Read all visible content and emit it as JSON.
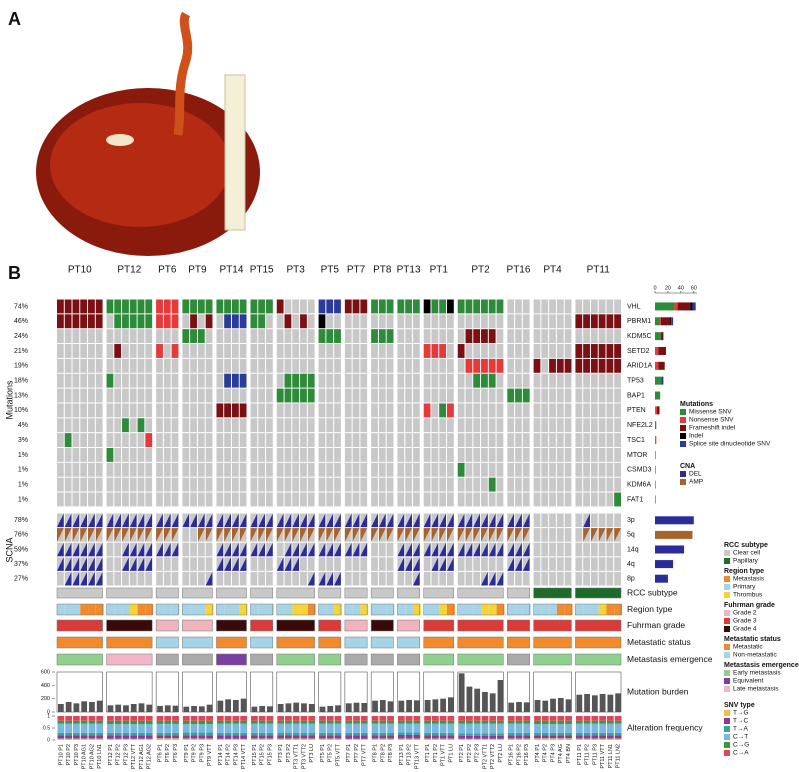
{
  "panel_a_label": "A",
  "panel_b_label": "B",
  "mutations_label": "Mutations",
  "scna_label": "SCNA",
  "patients": [
    {
      "name": "PT10",
      "samples": [
        "PT10 P1",
        "PT10 P2",
        "PT10 P3",
        "PT10 AG1",
        "PT10 AG2",
        "PT10 LN1"
      ],
      "region": [
        1,
        1,
        1,
        0,
        0,
        0
      ],
      "rcc": 0,
      "grade": 1,
      "status": 0,
      "emergence": 0,
      "burden": [
        120,
        150,
        130,
        160,
        150,
        170
      ],
      "spectrum": [
        0.06,
        0.14,
        0.1,
        0.38,
        0.12,
        0.2
      ]
    },
    {
      "name": "PT12",
      "samples": [
        "PT12 P1",
        "PT12 P2",
        "PT12 P3",
        "PT12 VTT",
        "PT12 AG1",
        "PT12 AG2"
      ],
      "region": [
        1,
        1,
        1,
        2,
        0,
        0
      ],
      "rcc": 0,
      "grade": 2,
      "status": 0,
      "emergence": 2,
      "burden": [
        100,
        110,
        100,
        120,
        130,
        110
      ],
      "spectrum": [
        0.05,
        0.15,
        0.1,
        0.36,
        0.14,
        0.2
      ]
    },
    {
      "name": "PT6",
      "samples": [
        "PT6 P1",
        "PT6 P2",
        "PT6 P3"
      ],
      "region": [
        1,
        1,
        1
      ],
      "rcc": 0,
      "grade": 0,
      "status": 1,
      "emergence": null,
      "burden": [
        90,
        100,
        95
      ],
      "spectrum": [
        0.07,
        0.13,
        0.1,
        0.37,
        0.13,
        0.2
      ]
    },
    {
      "name": "PT9",
      "samples": [
        "PT9 P1",
        "PT9 P2",
        "PT9 P3",
        "PT9 VTT"
      ],
      "region": [
        1,
        1,
        1,
        2
      ],
      "rcc": 0,
      "grade": 0,
      "status": 1,
      "emergence": null,
      "burden": [
        80,
        90,
        85,
        110
      ],
      "spectrum": [
        0.06,
        0.14,
        0.11,
        0.35,
        0.14,
        0.2
      ]
    },
    {
      "name": "PT14",
      "samples": [
        "PT14 P1",
        "PT14 P2",
        "PT14 P3",
        "PT14 VTT"
      ],
      "region": [
        1,
        1,
        1,
        2
      ],
      "rcc": 0,
      "grade": 2,
      "status": 0,
      "emergence": 1,
      "burden": [
        170,
        190,
        180,
        200
      ],
      "spectrum": [
        0.05,
        0.15,
        0.1,
        0.38,
        0.12,
        0.2
      ]
    },
    {
      "name": "PT15",
      "samples": [
        "PT15 P1",
        "PT15 P2",
        "PT15 P3"
      ],
      "region": [
        1,
        1,
        1
      ],
      "rcc": 0,
      "grade": 1,
      "status": 1,
      "emergence": null,
      "burden": [
        80,
        90,
        85
      ],
      "spectrum": [
        0.06,
        0.14,
        0.1,
        0.38,
        0.12,
        0.2
      ]
    },
    {
      "name": "PT3",
      "samples": [
        "PT3 P1",
        "PT3 P2",
        "PT3 VTT1",
        "PT3 VTT2",
        "PT3 LU"
      ],
      "region": [
        1,
        1,
        2,
        2,
        0
      ],
      "rcc": 0,
      "grade": 2,
      "status": 0,
      "emergence": 0,
      "burden": [
        120,
        130,
        140,
        130,
        120
      ],
      "spectrum": [
        0.06,
        0.13,
        0.1,
        0.39,
        0.12,
        0.2
      ]
    },
    {
      "name": "PT5",
      "samples": [
        "PT5 P1",
        "PT5 P2",
        "PT5 VTT"
      ],
      "region": [
        1,
        1,
        2
      ],
      "rcc": 0,
      "grade": 1,
      "status": 0,
      "emergence": 0,
      "burden": [
        80,
        90,
        100
      ],
      "spectrum": [
        0.06,
        0.14,
        0.1,
        0.38,
        0.12,
        0.2
      ]
    },
    {
      "name": "PT7",
      "samples": [
        "PT7 P1",
        "PT7 P2",
        "PT7 VTT"
      ],
      "region": [
        1,
        1,
        2
      ],
      "rcc": 0,
      "grade": 0,
      "status": 1,
      "emergence": null,
      "burden": [
        130,
        140,
        135
      ],
      "spectrum": [
        0.05,
        0.14,
        0.11,
        0.38,
        0.12,
        0.2
      ]
    },
    {
      "name": "PT8",
      "samples": [
        "PT8 P1",
        "PT8 P2",
        "PT8 P3"
      ],
      "region": [
        1,
        1,
        1
      ],
      "rcc": 0,
      "grade": 2,
      "status": 1,
      "emergence": null,
      "burden": [
        170,
        180,
        160
      ],
      "spectrum": [
        0.06,
        0.14,
        0.1,
        0.38,
        0.12,
        0.2
      ]
    },
    {
      "name": "PT13",
      "samples": [
        "PT13 P1",
        "PT13 P2",
        "PT13 VTT"
      ],
      "region": [
        1,
        1,
        2
      ],
      "rcc": 0,
      "grade": 0,
      "status": 1,
      "emergence": null,
      "burden": [
        170,
        180,
        175
      ],
      "spectrum": [
        0.06,
        0.15,
        0.1,
        0.37,
        0.12,
        0.2
      ]
    },
    {
      "name": "PT1",
      "samples": [
        "PT1 P1",
        "PT1 P2",
        "PT1 VTT",
        "PT1 LU"
      ],
      "region": [
        1,
        1,
        2,
        0
      ],
      "rcc": 0,
      "grade": 1,
      "status": 0,
      "emergence": 0,
      "burden": [
        180,
        190,
        200,
        220
      ],
      "spectrum": [
        0.06,
        0.14,
        0.1,
        0.38,
        0.12,
        0.2
      ]
    },
    {
      "name": "PT2",
      "samples": [
        "PT2 P1",
        "PT2 P2",
        "PT2 P3",
        "PT2 VTT1",
        "PT2 VTT2",
        "PT2 LU"
      ],
      "region": [
        1,
        1,
        1,
        2,
        2,
        0
      ],
      "rcc": 0,
      "grade": 1,
      "status": 0,
      "emergence": 0,
      "burden": [
        580,
        380,
        350,
        300,
        280,
        480
      ],
      "spectrum": [
        0.05,
        0.13,
        0.1,
        0.4,
        0.12,
        0.2
      ]
    },
    {
      "name": "PT16",
      "samples": [
        "PT16 P1",
        "PT16 P2",
        "PT16 P3"
      ],
      "region": [
        1,
        1,
        1
      ],
      "rcc": 0,
      "grade": 1,
      "status": 0,
      "emergence": null,
      "burden": [
        140,
        150,
        145
      ],
      "spectrum": [
        0.06,
        0.14,
        0.1,
        0.38,
        0.12,
        0.2
      ]
    },
    {
      "name": "PT4",
      "samples": [
        "PT4 P1",
        "PT4 P2",
        "PT4 P3",
        "PT4 AG",
        "PT4 BN"
      ],
      "region": [
        1,
        1,
        1,
        0,
        0
      ],
      "rcc": 1,
      "grade": 1,
      "status": 0,
      "emergence": 0,
      "burden": [
        180,
        170,
        200,
        210,
        190
      ],
      "spectrum": [
        0.07,
        0.13,
        0.1,
        0.36,
        0.14,
        0.2
      ]
    },
    {
      "name": "PT11",
      "samples": [
        "PT11 P1",
        "PT11 P2",
        "PT11 P3",
        "PT11 VTT",
        "PT11 LN1",
        "PT11 LN2"
      ],
      "region": [
        1,
        1,
        1,
        2,
        0,
        0
      ],
      "rcc": 1,
      "grade": 1,
      "status": 0,
      "emergence": 0,
      "burden": [
        260,
        270,
        250,
        270,
        260,
        280
      ],
      "spectrum": [
        0.06,
        0.14,
        0.1,
        0.38,
        0.12,
        0.2
      ]
    }
  ],
  "genes": [
    {
      "name": "VHL",
      "pct": "74%",
      "counts": [
        30,
        5,
        20,
        3,
        5
      ],
      "hits": [
        [
          0,
          5,
          2
        ],
        [
          6,
          11,
          0
        ],
        [
          12,
          14,
          1
        ],
        [
          15,
          18,
          0
        ],
        [
          19,
          22,
          0
        ],
        [
          23,
          25,
          0
        ],
        [
          26,
          26,
          2
        ],
        [
          31,
          33,
          4
        ],
        [
          34,
          36,
          2
        ],
        [
          37,
          39,
          0
        ],
        [
          40,
          42,
          0
        ],
        [
          43,
          43,
          3
        ],
        [
          44,
          45,
          0
        ],
        [
          46,
          46,
          3
        ],
        [
          47,
          52,
          0
        ]
      ]
    },
    {
      "name": "PBRM1",
      "pct": "46%",
      "counts": [
        7,
        2,
        15,
        1,
        3
      ],
      "hits": [
        [
          0,
          5,
          2
        ],
        [
          7,
          11,
          0
        ],
        [
          12,
          14,
          1
        ],
        [
          16,
          16,
          2
        ],
        [
          18,
          18,
          2
        ],
        [
          20,
          22,
          4
        ],
        [
          23,
          24,
          0
        ],
        [
          27,
          27,
          2
        ],
        [
          29,
          29,
          2
        ],
        [
          31,
          31,
          3
        ],
        [
          61,
          66,
          2
        ]
      ]
    },
    {
      "name": "KDM5C",
      "pct": "24%",
      "counts": [
        9,
        0,
        4,
        0,
        0
      ],
      "hits": [
        [
          15,
          17,
          0
        ],
        [
          31,
          33,
          0
        ],
        [
          37,
          39,
          0
        ],
        [
          48,
          51,
          2
        ]
      ]
    },
    {
      "name": "SETD2",
      "pct": "21%",
      "counts": [
        0,
        5,
        12,
        0,
        0
      ],
      "hits": [
        [
          7,
          7,
          2
        ],
        [
          12,
          12,
          1
        ],
        [
          14,
          14,
          1
        ],
        [
          43,
          45,
          1
        ],
        [
          47,
          47,
          2
        ],
        [
          61,
          66,
          2
        ]
      ]
    },
    {
      "name": "ARID1A",
      "pct": "19%",
      "counts": [
        0,
        5,
        10,
        0,
        0
      ],
      "hits": [
        [
          48,
          52,
          1
        ],
        [
          56,
          56,
          2
        ],
        [
          58,
          60,
          2
        ],
        [
          61,
          66,
          2
        ]
      ]
    },
    {
      "name": "TP53",
      "pct": "18%",
      "counts": [
        10,
        0,
        0,
        0,
        3
      ],
      "hits": [
        [
          6,
          6,
          0
        ],
        [
          20,
          22,
          4
        ],
        [
          27,
          30,
          0
        ],
        [
          49,
          51,
          0
        ]
      ]
    },
    {
      "name": "BAP1",
      "pct": "13%",
      "counts": [
        8,
        0,
        0,
        0,
        0
      ],
      "hits": [
        [
          26,
          30,
          0
        ],
        [
          53,
          55,
          0
        ]
      ]
    },
    {
      "name": "PTEN",
      "pct": "10%",
      "counts": [
        1,
        2,
        4,
        0,
        0
      ],
      "hits": [
        [
          19,
          22,
          2
        ],
        [
          43,
          43,
          1
        ],
        [
          45,
          45,
          0
        ],
        [
          46,
          46,
          1
        ]
      ]
    },
    {
      "name": "NFE2L2",
      "pct": "4%",
      "counts": [
        2,
        0,
        0,
        0,
        0
      ],
      "hits": [
        [
          8,
          8,
          0
        ],
        [
          10,
          10,
          0
        ]
      ]
    },
    {
      "name": "TSC1",
      "pct": "3%",
      "counts": [
        1,
        1,
        0,
        0,
        0
      ],
      "hits": [
        [
          1,
          1,
          0
        ],
        [
          11,
          11,
          1
        ]
      ]
    },
    {
      "name": "MTOR",
      "pct": "1%",
      "counts": [
        1,
        0,
        0,
        0,
        0
      ],
      "hits": [
        [
          6,
          6,
          0
        ]
      ]
    },
    {
      "name": "CSMD3",
      "pct": "1%",
      "counts": [
        1,
        0,
        0,
        0,
        0
      ],
      "hits": [
        [
          47,
          47,
          0
        ]
      ]
    },
    {
      "name": "KDM6A",
      "pct": "1%",
      "counts": [
        1,
        0,
        0,
        0,
        0
      ],
      "hits": [
        [
          51,
          51,
          0
        ]
      ]
    },
    {
      "name": "FAT1",
      "pct": "1%",
      "counts": [
        1,
        0,
        0,
        0,
        0
      ],
      "hits": [
        [
          66,
          66,
          0
        ]
      ]
    }
  ],
  "scna": [
    {
      "name": "3p",
      "pct": "78%",
      "counts": [
        60,
        0
      ],
      "hits": [
        [
          0,
          55,
          0
        ],
        [
          62,
          62,
          0
        ]
      ]
    },
    {
      "name": "5q",
      "pct": "76%",
      "counts": [
        0,
        58
      ],
      "hits": [
        [
          0,
          14,
          1
        ],
        [
          17,
          55,
          1
        ],
        [
          62,
          66,
          1
        ]
      ]
    },
    {
      "name": "14q",
      "pct": "59%",
      "counts": [
        45,
        0
      ],
      "hits": [
        [
          0,
          5,
          0
        ],
        [
          8,
          14,
          0
        ],
        [
          19,
          25,
          0
        ],
        [
          27,
          36,
          0
        ],
        [
          40,
          55,
          0
        ]
      ]
    },
    {
      "name": "4q",
      "pct": "37%",
      "counts": [
        28,
        0
      ],
      "hits": [
        [
          0,
          5,
          0
        ],
        [
          8,
          11,
          0
        ],
        [
          19,
          22,
          0
        ],
        [
          26,
          28,
          0
        ],
        [
          40,
          42,
          0
        ],
        [
          44,
          46,
          0
        ],
        [
          53,
          55,
          0
        ]
      ]
    },
    {
      "name": "8p",
      "pct": "27%",
      "counts": [
        20,
        0
      ],
      "hits": [
        [
          1,
          5,
          0
        ],
        [
          18,
          18,
          0
        ],
        [
          30,
          33,
          0
        ],
        [
          42,
          42,
          0
        ],
        [
          50,
          52,
          0
        ]
      ]
    }
  ],
  "freq_xlim": [
    0,
    65
  ],
  "freq_xticks": [
    0,
    20,
    40,
    60
  ],
  "tracks": {
    "rcc": "RCC subtype",
    "region": "Region type",
    "grade": "Fuhrman grade",
    "status": "Metastatic status",
    "emergence": "Metastasis emergence",
    "burden": "Mutation burden",
    "spectrum": "Alteration frequency"
  },
  "burden_ylim": [
    0,
    600
  ],
  "burden_yticks": [
    0,
    200,
    400,
    600
  ],
  "spectrum_ylim": [
    0,
    1
  ],
  "spectrum_yticks": [
    0,
    0.5,
    1
  ],
  "legends": {
    "mutation": {
      "title": "Mutations",
      "items": [
        {
          "name": "Missense SNV",
          "color": "#2e8b3a"
        },
        {
          "name": "Nonsense SNV",
          "color": "#e8393a"
        },
        {
          "name": "Frameshift indel",
          "color": "#7a0f14"
        },
        {
          "name": "Indel",
          "color": "#000000"
        },
        {
          "name": "Splice site dinucleotide SNV",
          "color": "#2a3b9c"
        }
      ]
    },
    "cna": {
      "title": "CNA",
      "items": [
        {
          "name": "DEL",
          "color": "#2b2b9a"
        },
        {
          "name": "AMP",
          "color": "#a8632a"
        }
      ]
    },
    "rcc": {
      "title": "RCC subtype",
      "items": [
        {
          "name": "Clear cell",
          "color": "#c8c8c8"
        },
        {
          "name": "Papillary",
          "color": "#1f6b2a"
        }
      ]
    },
    "region": {
      "title": "Region type",
      "items": [
        {
          "name": "Metastasis",
          "color": "#f08a2c"
        },
        {
          "name": "Primary",
          "color": "#a6d4e6"
        },
        {
          "name": "Thrombus",
          "color": "#f5d438"
        }
      ]
    },
    "grade": {
      "title": "Fuhrman grade",
      "items": [
        {
          "name": "Grade 2",
          "color": "#f0b4bf"
        },
        {
          "name": "Grade 3",
          "color": "#d93a3a"
        },
        {
          "name": "Grade 4",
          "color": "#3a0a0a"
        }
      ]
    },
    "status": {
      "title": "Metastatic status",
      "items": [
        {
          "name": "Metastatic",
          "color": "#f08a2c"
        },
        {
          "name": "Non-metastatic",
          "color": "#a6d4e6"
        }
      ]
    },
    "emergence": {
      "title": "Metastasis emergence",
      "items": [
        {
          "name": "Early metastasis",
          "color": "#8fd08f"
        },
        {
          "name": "Equivalent",
          "color": "#7b3fa0"
        },
        {
          "name": "Late metastasis",
          "color": "#f2b6c8"
        }
      ]
    },
    "snv": {
      "title": "SNV type",
      "items": [
        {
          "name": "T→G",
          "color": "#f0c040"
        },
        {
          "name": "T→C",
          "color": "#8b3a9a"
        },
        {
          "name": "T→A",
          "color": "#3aa0a0"
        },
        {
          "name": "C→T",
          "color": "#7ab8e0"
        },
        {
          "name": "C→G",
          "color": "#3a9a3a"
        },
        {
          "name": "C→A",
          "color": "#d9485a"
        }
      ]
    }
  }
}
